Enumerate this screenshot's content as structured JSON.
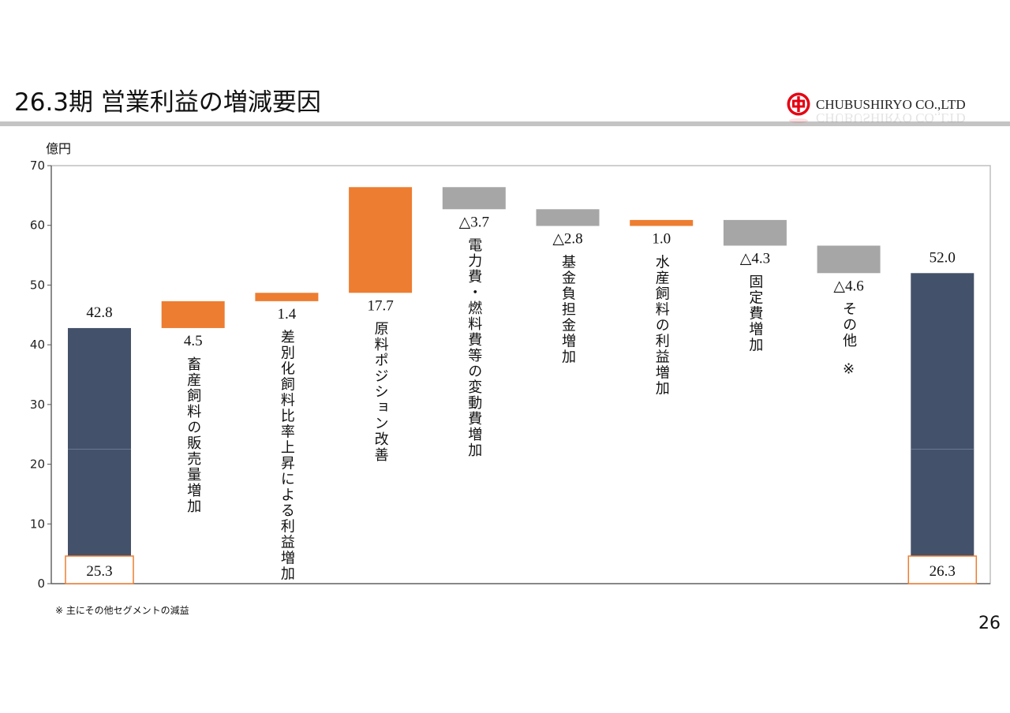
{
  "slide": {
    "title": "26.3期 営業利益の増減要因",
    "company": "CHUBUSHIRYO CO.,LTD",
    "logo_icon": "chubushiryo-logo-icon",
    "unit": "億円",
    "footnote": "※ 主にその他セグメントの減益",
    "page_number": "26"
  },
  "colors": {
    "total": "#44516a",
    "increase": "#ed7d31",
    "decrease": "#a6a6a6",
    "box_outline": "#ed7d31",
    "logo_red": "#e60012"
  },
  "chart_data": {
    "type": "waterfall",
    "ylim": [
      0,
      70
    ],
    "yticks": [
      0,
      10,
      20,
      30,
      40,
      50,
      60,
      70
    ],
    "grid": false,
    "bars": [
      {
        "kind": "total",
        "value": 42.8,
        "value_label": "42.8",
        "base_label": "25.3",
        "category": ""
      },
      {
        "kind": "increase",
        "value": 4.5,
        "value_label": "4.5",
        "category": "畜産飼料の販売量増加"
      },
      {
        "kind": "increase",
        "value": 1.4,
        "value_label": "1.4",
        "category": "差別化飼料比率上昇による利益増加"
      },
      {
        "kind": "increase",
        "value": 17.7,
        "value_label": "17.7",
        "category": "原料ポジション改善"
      },
      {
        "kind": "decrease",
        "value": -3.7,
        "value_label": "△3.7",
        "category": "電力費・燃料費等の変動費増加"
      },
      {
        "kind": "decrease",
        "value": -2.8,
        "value_label": "△2.8",
        "category": "基金負担金増加"
      },
      {
        "kind": "increase",
        "value": 1.0,
        "value_label": "1.0",
        "category": "水産飼料の利益増加"
      },
      {
        "kind": "decrease",
        "value": -4.3,
        "value_label": "△4.3",
        "category": "固定費増加"
      },
      {
        "kind": "decrease",
        "value": -4.6,
        "value_label": "△4.6",
        "category": "その他",
        "note": "※"
      },
      {
        "kind": "total",
        "value": 52.0,
        "value_label": "52.0",
        "base_label": "26.3",
        "category": ""
      }
    ]
  }
}
